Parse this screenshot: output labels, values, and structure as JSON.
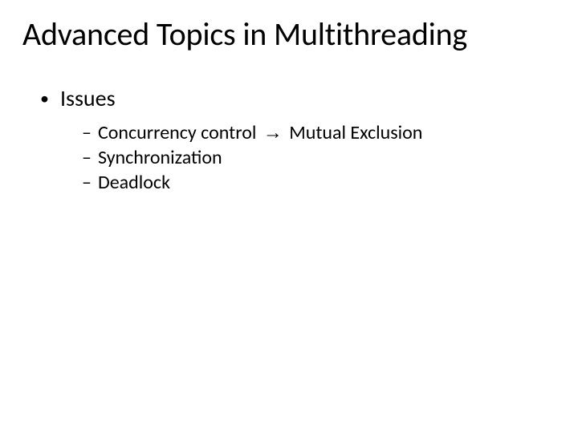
{
  "slide": {
    "title": "Advanced Topics in Multithreading",
    "title_fontsize": 40,
    "background_color": "#ffffff",
    "text_color": "#000000",
    "font_family": "Calibri",
    "bullets": {
      "l1": {
        "label": "Issues",
        "fontsize": 28,
        "marker": "•"
      },
      "l2": {
        "fontsize": 24,
        "marker": "–",
        "items": [
          {
            "pre": "Concurrency control ",
            "arrow": "→",
            "post": " Mutual Exclusion"
          },
          {
            "pre": "Synchronization",
            "arrow": "",
            "post": ""
          },
          {
            "pre": "Deadlock",
            "arrow": "",
            "post": ""
          }
        ]
      }
    }
  }
}
